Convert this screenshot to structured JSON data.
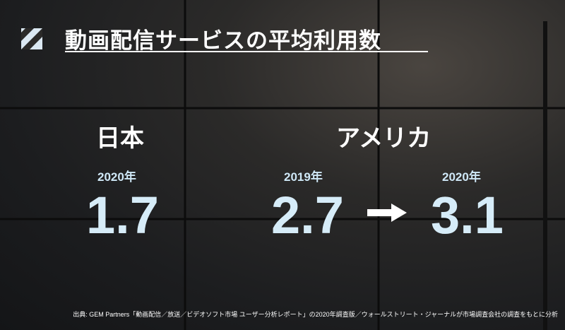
{
  "header": {
    "title": "動画配信サービスの平均利用数"
  },
  "japan": {
    "label": "日本",
    "year": "2020年",
    "value": 1.7
  },
  "usa": {
    "label": "アメリカ",
    "before": {
      "year": "2019年",
      "value": 2.7
    },
    "after": {
      "year": "2020年",
      "value": 3.1
    }
  },
  "footer": {
    "source": "出典: GEM Partners「動画配信／放送／ビデオソフト市場 ユーザー分析レポート」の2020年調査版／ウォールストリート・ジャーナルが市場調査会社の調査をもとに分析"
  }
}
